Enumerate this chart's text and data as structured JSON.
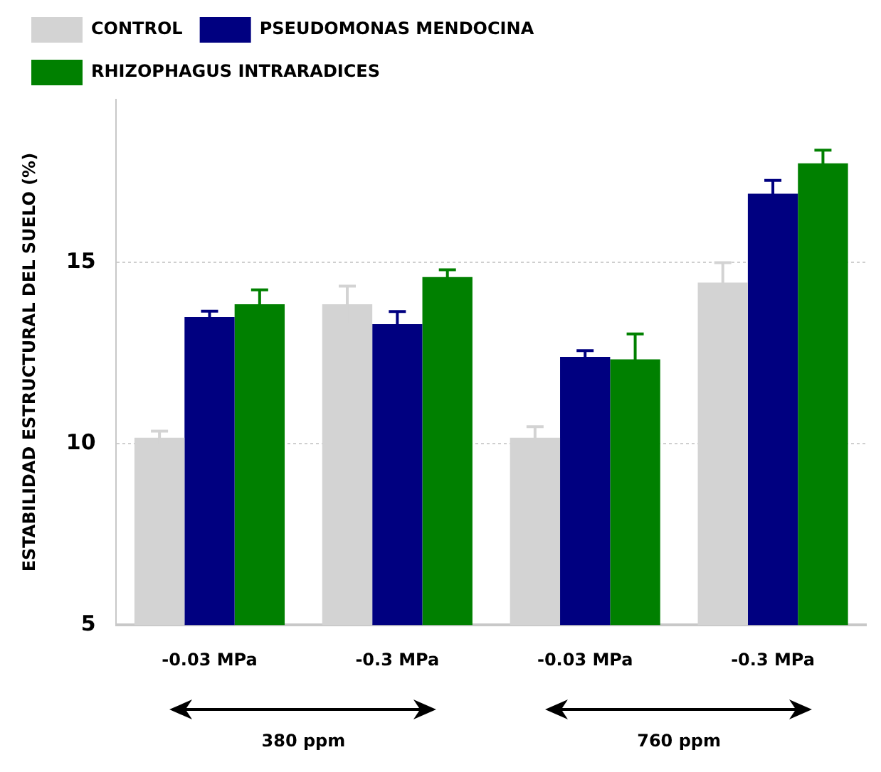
{
  "chart_data": {
    "type": "bar",
    "ylabel": "ESTABILIDAD ESTRUCTURAL DEL SUELO (%)",
    "categories": [
      "-0.03 MPa",
      "-0.3 MPa",
      "-0.03 MPa",
      "-0.3 MPa"
    ],
    "series": [
      {
        "name": "CONTROL",
        "color": "#d3d3d3",
        "values": [
          10.17,
          13.85,
          10.17,
          14.45
        ],
        "errors": [
          0.18,
          0.5,
          0.3,
          0.55
        ]
      },
      {
        "name": "PSEUDOMONAS MENDOCINA",
        "color": "#000080",
        "values": [
          13.5,
          13.3,
          12.4,
          16.9
        ],
        "errors": [
          0.16,
          0.35,
          0.17,
          0.37
        ]
      },
      {
        "name": "RHIZOPHAGUS INTRARADICES",
        "color": "#008000",
        "values": [
          13.85,
          14.6,
          12.33,
          17.74
        ],
        "errors": [
          0.4,
          0.2,
          0.7,
          0.36
        ]
      }
    ],
    "ylim": [
      5,
      19.5
    ],
    "yticks": [
      5,
      10,
      15
    ],
    "grid": "y",
    "legend": "top left",
    "annotations": [
      "380 ppm",
      "760 ppm"
    ]
  }
}
